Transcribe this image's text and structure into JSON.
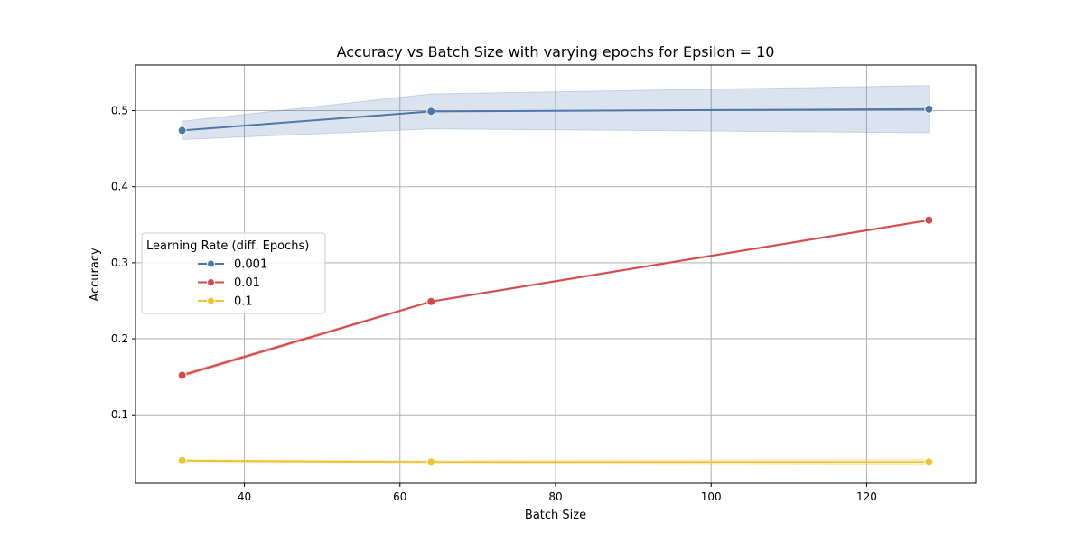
{
  "chart_data": {
    "type": "line",
    "title": "Accuracy vs Batch Size with varying epochs for Epsilon = 10",
    "xlabel": "Batch Size",
    "ylabel": "Accuracy",
    "xlim": [
      26,
      134
    ],
    "ylim": [
      0.01,
      0.56
    ],
    "xticks": [
      40,
      60,
      80,
      100,
      120
    ],
    "yticks": [
      0.1,
      0.2,
      0.3,
      0.4,
      0.5
    ],
    "grid": true,
    "legend": {
      "title": "Learning Rate (diff. Epochs)",
      "placement": "center-left"
    },
    "x": [
      32,
      64,
      128
    ],
    "series": [
      {
        "name": "0.001",
        "color": "#4c78a8",
        "values": [
          0.474,
          0.499,
          0.502
        ],
        "band_low": [
          0.462,
          0.476,
          0.471
        ],
        "band_high": [
          0.486,
          0.522,
          0.533
        ]
      },
      {
        "name": "0.01",
        "color": "#d34a4a",
        "values": [
          0.152,
          0.249,
          0.356
        ],
        "band_low": [
          0.15,
          0.248,
          0.355
        ],
        "band_high": [
          0.154,
          0.25,
          0.357
        ]
      },
      {
        "name": "0.1",
        "color": "#f2c12e",
        "values": [
          0.04,
          0.038,
          0.038
        ],
        "band_low": [
          0.039,
          0.036,
          0.034
        ],
        "band_high": [
          0.041,
          0.04,
          0.042
        ]
      }
    ]
  }
}
